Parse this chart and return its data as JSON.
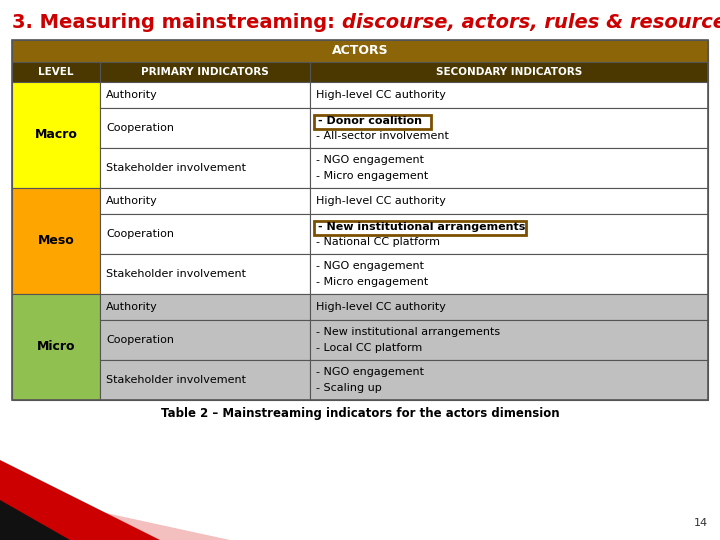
{
  "title_normal": "3. Measuring mainstreaming: ",
  "title_italic": "discourse, actors, rules & resources",
  "title_color": "#CC0000",
  "title_fontsize": 14,
  "header_top_text": "ACTORS",
  "header_top_bg": "#8B6508",
  "header_top_fg": "#FFFFFF",
  "header_row_bg": "#4A3800",
  "header_row_fg": "#FFFFFF",
  "col_headers": [
    "LEVEL",
    "PRIMARY INDICATORS",
    "SECONDARY INDICATORS"
  ],
  "macro_color": "#FFFF00",
  "meso_color": "#FFA500",
  "micro_color": "#90C050",
  "white_bg": "#FFFFFF",
  "gray_bg": "#C0C0C0",
  "highlight_border": "#7B4F00",
  "rows": [
    {
      "level": "Macro",
      "level_color": "#FFFF00",
      "indicator": "Authority",
      "secondary": "High-level CC authority",
      "secondary2": "",
      "highlight": false
    },
    {
      "level": "Macro",
      "level_color": "#FFFF00",
      "indicator": "Cooperation",
      "secondary": "- Donor coalition",
      "secondary2": "- All-sector involvement",
      "highlight": true
    },
    {
      "level": "Macro",
      "level_color": "#FFFF00",
      "indicator": "Stakeholder involvement",
      "secondary": "- NGO engagement",
      "secondary2": "- Micro engagement",
      "highlight": false
    },
    {
      "level": "Meso",
      "level_color": "#FFA500",
      "indicator": "Authority",
      "secondary": "High-level CC authority",
      "secondary2": "",
      "highlight": false
    },
    {
      "level": "Meso",
      "level_color": "#FFA500",
      "indicator": "Cooperation",
      "secondary": "- New institutional arrangements",
      "secondary2": "- National CC platform",
      "highlight": true
    },
    {
      "level": "Meso",
      "level_color": "#FFA500",
      "indicator": "Stakeholder involvement",
      "secondary": "- NGO engagement",
      "secondary2": "- Micro engagement",
      "highlight": false
    },
    {
      "level": "Micro",
      "level_color": "#90C050",
      "indicator": "Authority",
      "secondary": "High-level CC authority",
      "secondary2": "",
      "highlight": false
    },
    {
      "level": "Micro",
      "level_color": "#90C050",
      "indicator": "Cooperation",
      "secondary": "- New institutional arrangements",
      "secondary2": "- Local CC platform",
      "highlight": false
    },
    {
      "level": "Micro",
      "level_color": "#90C050",
      "indicator": "Stakeholder involvement",
      "secondary": "- NGO engagement",
      "secondary2": "- Scaling up",
      "highlight": false
    }
  ],
  "caption": "Table 2 – Mainstreaming indicators for the actors dimension",
  "caption_fontsize": 8.5,
  "page_number": "14",
  "bg_color": "#FFFFFF"
}
